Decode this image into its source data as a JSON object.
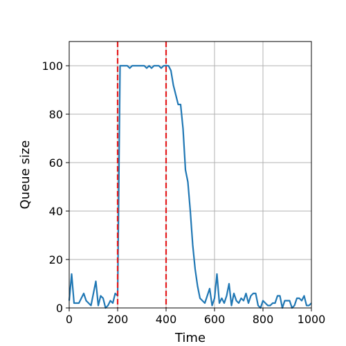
{
  "chart_data": {
    "type": "line",
    "title": "",
    "xlabel": "Time",
    "ylabel": "Queue size",
    "xlim": [
      0,
      1000
    ],
    "ylim": [
      0,
      110
    ],
    "x_ticks": [
      0,
      200,
      400,
      600,
      800,
      1000
    ],
    "y_ticks": [
      0,
      20,
      40,
      60,
      80,
      100
    ],
    "grid": true,
    "series": [
      {
        "color": "#1f77b4",
        "x": [
          0,
          10,
          20,
          30,
          40,
          50,
          60,
          70,
          80,
          90,
          100,
          110,
          120,
          130,
          140,
          150,
          160,
          170,
          180,
          190,
          200,
          210,
          220,
          230,
          240,
          250,
          260,
          270,
          280,
          290,
          300,
          310,
          320,
          330,
          340,
          350,
          360,
          370,
          380,
          390,
          400,
          410,
          420,
          430,
          440,
          450,
          460,
          470,
          480,
          490,
          500,
          510,
          520,
          530,
          540,
          550,
          560,
          570,
          580,
          590,
          600,
          610,
          620,
          630,
          640,
          650,
          660,
          670,
          680,
          690,
          700,
          710,
          720,
          730,
          740,
          750,
          760,
          770,
          780,
          790,
          800,
          810,
          820,
          830,
          840,
          850,
          860,
          870,
          880,
          890,
          900,
          910,
          920,
          930,
          940,
          950,
          960,
          970,
          980,
          990,
          1000
        ],
        "values": [
          3,
          14,
          2,
          2,
          2,
          4,
          6,
          3,
          2,
          1,
          6,
          11,
          1,
          5,
          4,
          0,
          1,
          3,
          2,
          6,
          5,
          100,
          100,
          100,
          100,
          99,
          100,
          100,
          100,
          100,
          100,
          100,
          99,
          100,
          99,
          100,
          100,
          100,
          99,
          100,
          100,
          100,
          98,
          92,
          88,
          84,
          84,
          74,
          57,
          52,
          40,
          26,
          16,
          9,
          4,
          3,
          2,
          5,
          8,
          1,
          4,
          14,
          2,
          4,
          2,
          5,
          10,
          1,
          6,
          3,
          2,
          4,
          3,
          6,
          2,
          5,
          6,
          6,
          1,
          0,
          3,
          2,
          1,
          1,
          2,
          2,
          5,
          5,
          0,
          3,
          3,
          3,
          0,
          1,
          4,
          4,
          3,
          5,
          1,
          1,
          2
        ]
      }
    ],
    "reference_lines": [
      {
        "axis": "x",
        "value": 200,
        "color": "#e41a1c",
        "style": "dashed"
      },
      {
        "axis": "x",
        "value": 400,
        "color": "#e41a1c",
        "style": "dashed"
      }
    ]
  }
}
